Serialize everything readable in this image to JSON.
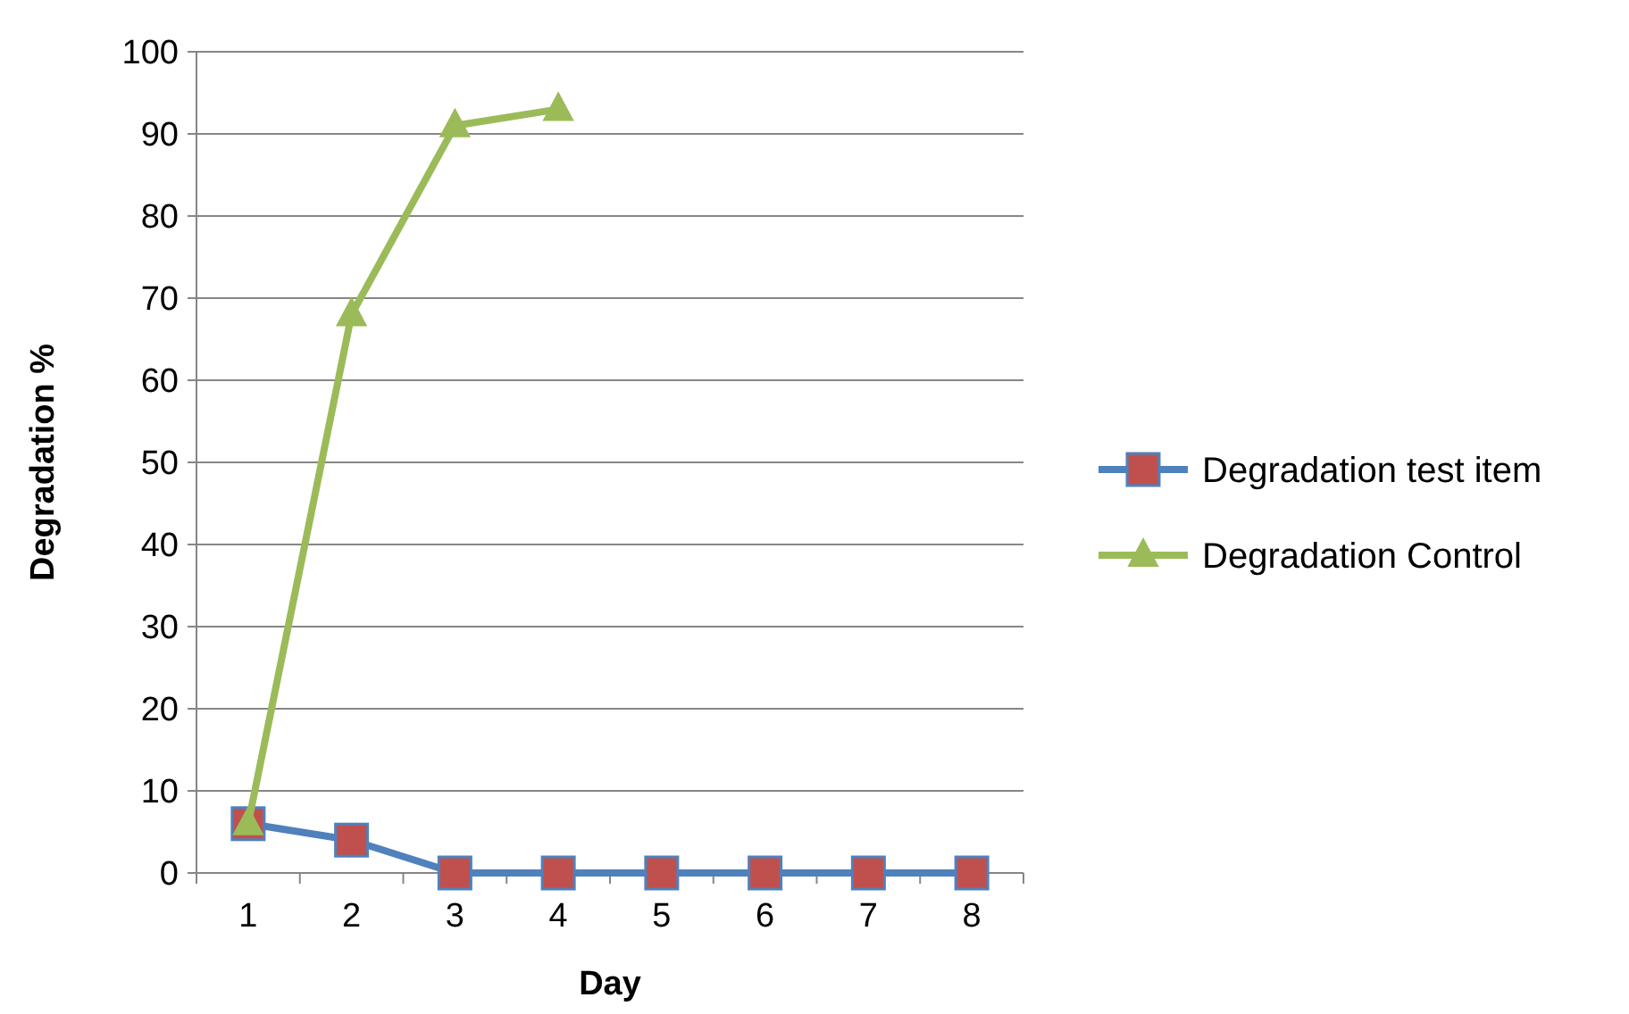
{
  "chart_data": {
    "type": "line",
    "xlabel": "Day",
    "ylabel": "Degradation %",
    "categories": [
      "1",
      "2",
      "3",
      "4",
      "5",
      "6",
      "7",
      "8"
    ],
    "series": [
      {
        "name": "Degradation test item",
        "color": "#4f81bd",
        "marker": "square",
        "values": [
          6,
          4,
          0,
          0,
          0,
          0,
          0,
          0
        ]
      },
      {
        "name": "Degradation Control",
        "color": "#9bbb59",
        "marker": "triangle",
        "values": [
          6,
          68,
          91,
          93,
          null,
          null,
          null,
          null
        ]
      }
    ],
    "ylim": [
      0,
      100
    ],
    "yticks": [
      0,
      10,
      20,
      30,
      40,
      50,
      60,
      70,
      80,
      90,
      100
    ],
    "grid": "y",
    "legend": "right"
  }
}
